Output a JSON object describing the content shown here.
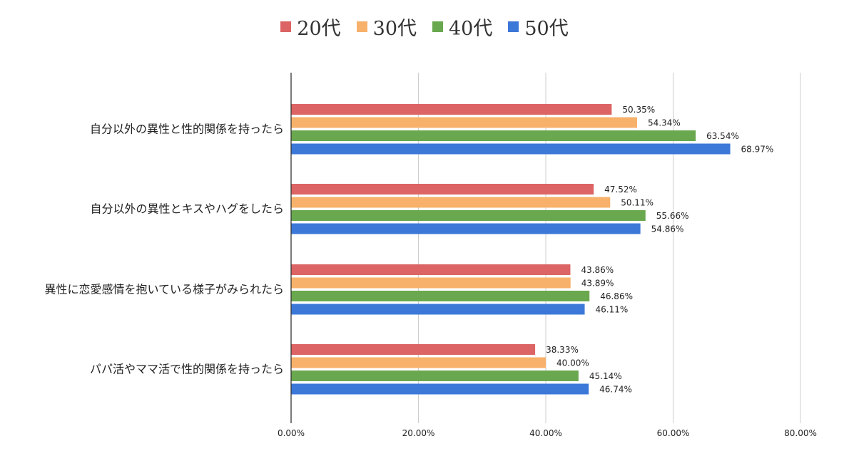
{
  "chart_data": {
    "type": "bar",
    "orientation": "horizontal",
    "categories": [
      "自分以外の異性と性的関係を持ったら",
      "自分以外の異性とキスやハグをしたら",
      "異性に恋愛感情を抱いている様子がみられたら",
      "パパ活やママ活で性的関係を持ったら"
    ],
    "series": [
      {
        "name": "20代",
        "color": "#dc6464",
        "values": [
          50.35,
          47.52,
          43.86,
          38.33
        ],
        "labels": [
          "50.35%",
          "47.52%",
          "43.86%",
          "38.33%"
        ]
      },
      {
        "name": "30代",
        "color": "#f7b16b",
        "values": [
          54.34,
          50.11,
          43.89,
          40.0
        ],
        "labels": [
          "54.34%",
          "50.11%",
          "43.89%",
          "40.00%"
        ]
      },
      {
        "name": "40代",
        "color": "#6aa84f",
        "values": [
          63.54,
          55.66,
          46.86,
          45.14
        ],
        "labels": [
          "63.54%",
          "55.66%",
          "46.86%",
          "45.14%"
        ]
      },
      {
        "name": "50代",
        "color": "#3c78d8",
        "values": [
          68.97,
          54.86,
          46.11,
          46.74
        ],
        "labels": [
          "68.97%",
          "54.86%",
          "46.11%",
          "46.74%"
        ]
      }
    ],
    "xlim": [
      0,
      80
    ],
    "x_ticks": [
      0,
      20,
      40,
      60,
      80
    ],
    "x_tick_labels": [
      "0.00%",
      "20.00%",
      "40.00%",
      "60.00%",
      "80.00%"
    ],
    "grid": true,
    "legend_position": "top-center",
    "title": "",
    "xlabel": "",
    "ylabel": ""
  }
}
